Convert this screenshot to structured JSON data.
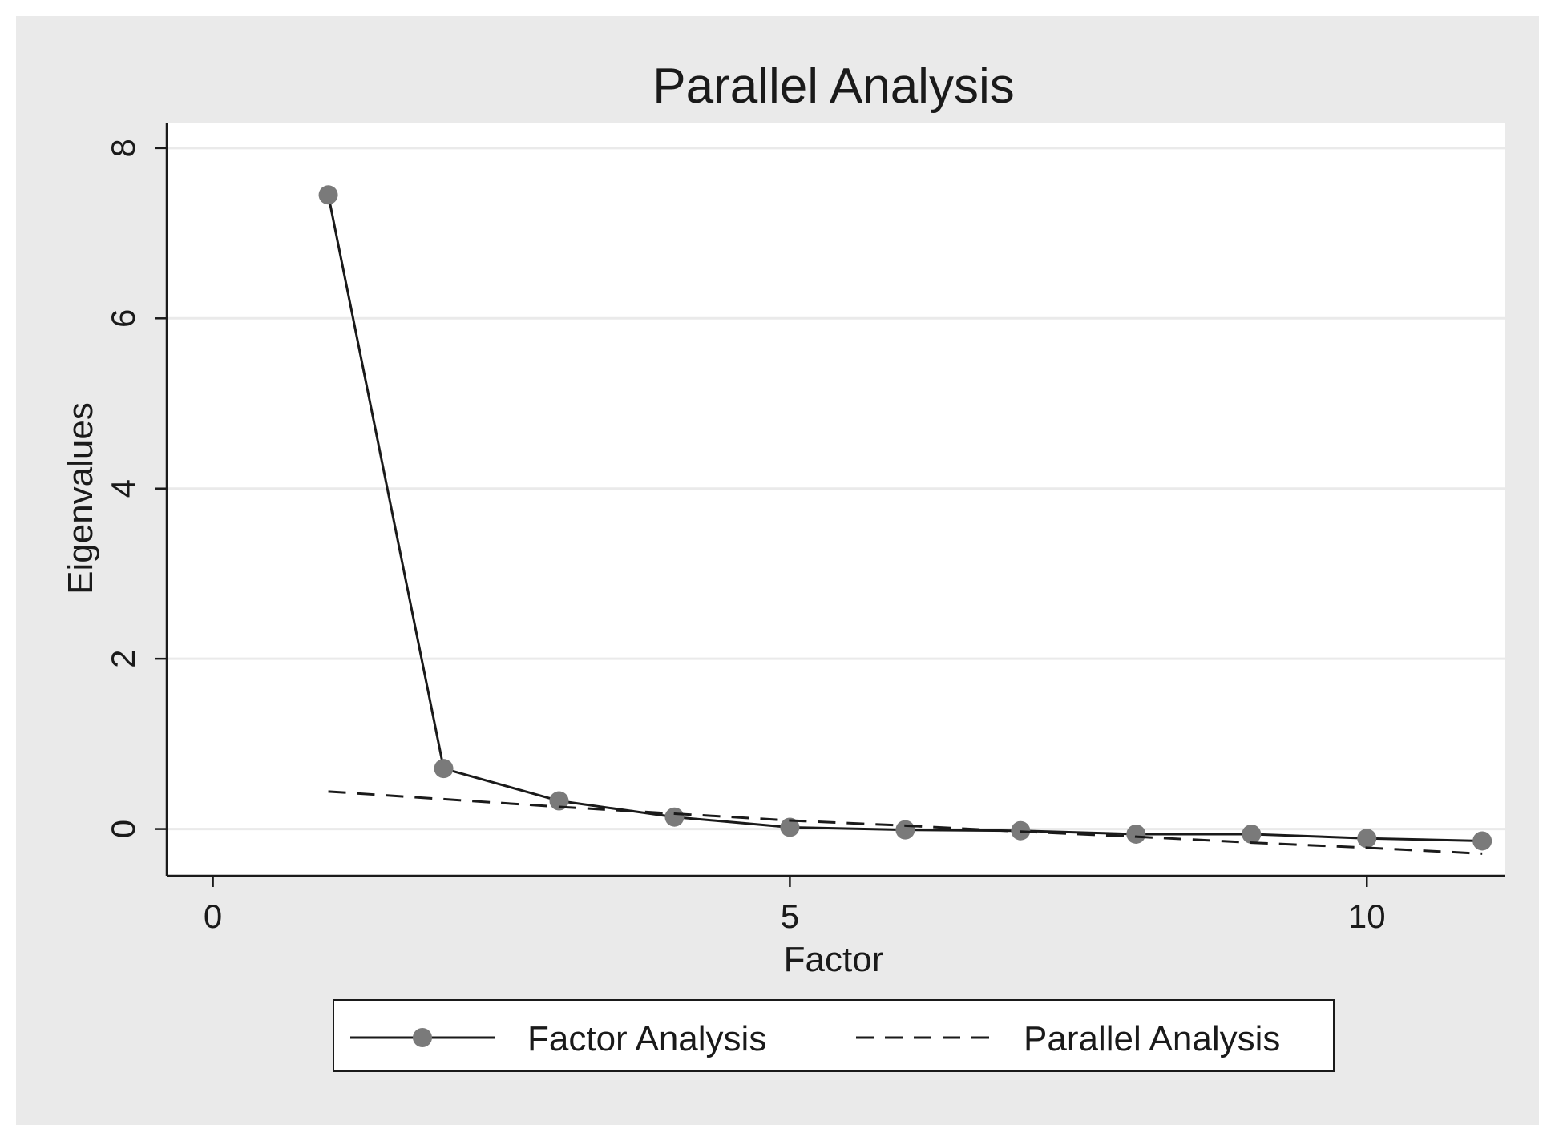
{
  "chart_data": {
    "type": "line",
    "title": "Parallel Analysis",
    "xlabel": "Factor",
    "ylabel": "Eigenvalues",
    "xlim": [
      -0.4,
      11.2
    ],
    "ylim": [
      -0.55,
      8.3
    ],
    "x_ticks": [
      0,
      5,
      10
    ],
    "y_ticks": [
      0,
      2,
      4,
      6,
      8
    ],
    "grid": "horizontal",
    "legend_position": "bottom",
    "series": [
      {
        "name": "Factor Analysis",
        "style": "solid-with-markers",
        "color": "#1a1a1a",
        "marker_color": "#7a7a7a",
        "x": [
          1,
          2,
          3,
          4,
          5,
          6,
          7,
          8,
          9,
          10,
          11
        ],
        "y": [
          7.45,
          0.71,
          0.33,
          0.14,
          0.02,
          -0.01,
          -0.02,
          -0.06,
          -0.06,
          -0.11,
          -0.14
        ]
      },
      {
        "name": "Parallel Analysis",
        "style": "dashed",
        "color": "#1a1a1a",
        "x": [
          1,
          2,
          3,
          4,
          5,
          6,
          7,
          8,
          9,
          10,
          11
        ],
        "y": [
          0.44,
          0.35,
          0.26,
          0.18,
          0.1,
          0.04,
          -0.03,
          -0.09,
          -0.16,
          -0.22,
          -0.29
        ]
      }
    ]
  },
  "colors": {
    "outer_background": "#eaeaea",
    "plot_background": "#ffffff",
    "gridline": "#eaeaea",
    "axis": "#1a1a1a"
  }
}
